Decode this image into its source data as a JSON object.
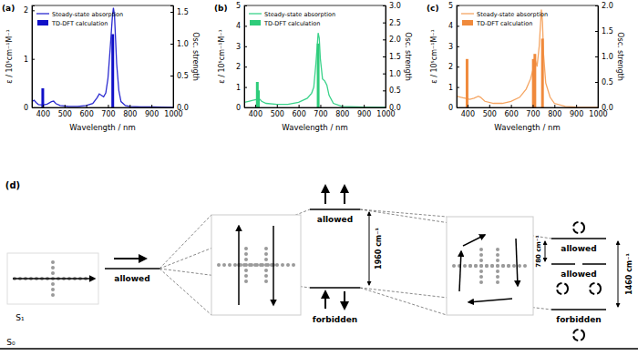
{
  "chart_data": [
    {
      "type": "line",
      "title": "(a)",
      "xlabel": "Wavelength / nm",
      "ylabel": "ε / 10⁵cm⁻¹M⁻¹",
      "y2label": "Osc. strength",
      "xlim": [
        350,
        1000
      ],
      "xticks": [
        400,
        500,
        600,
        700,
        800,
        900,
        1000
      ],
      "ylim": [
        0,
        2.1
      ],
      "yticks": [
        0,
        1,
        2
      ],
      "y2lim": [
        0,
        1.6
      ],
      "y2ticks": [
        {
          "value": 0,
          "label": "0.0"
        },
        0.5,
        {
          "value": 1,
          "label": "1.0"
        },
        1.5
      ],
      "legend": "upper left",
      "series": [
        {
          "name": "Steady-state absorption",
          "type": "line",
          "color": "#2b2bd0",
          "x": [
            350,
            360,
            370,
            380,
            400,
            420,
            440,
            450,
            460,
            480,
            520,
            560,
            600,
            630,
            650,
            660,
            670,
            680,
            690,
            700,
            710,
            720,
            725,
            730,
            740,
            750,
            760,
            780,
            800,
            850,
            900,
            1000
          ],
          "values": [
            0.12,
            0.15,
            0.1,
            0.06,
            0.05,
            0.07,
            0.12,
            0.13,
            0.08,
            0.04,
            0.02,
            0.02,
            0.04,
            0.08,
            0.2,
            0.28,
            0.25,
            0.22,
            0.3,
            0.6,
            1.2,
            1.85,
            2.05,
            1.9,
            0.9,
            0.35,
            0.12,
            0.04,
            0.02,
            0.01,
            0.01,
            0
          ]
        },
        {
          "name": "TD-DFT calculation",
          "type": "bar",
          "axis": "y2",
          "color": "#1010c8",
          "x": [
            400,
            722
          ],
          "values": [
            0.3,
            1.15
          ]
        }
      ]
    },
    {
      "type": "line",
      "title": "(b)",
      "xlabel": "Wavelength / nm",
      "ylabel": "ε / 10⁵cm⁻¹M⁻¹",
      "y2label": "Osc. strength",
      "xlim": [
        350,
        1000
      ],
      "xticks": [
        400,
        500,
        600,
        700,
        800,
        900,
        1000
      ],
      "ylim": [
        0,
        5
      ],
      "yticks": [
        0,
        1,
        2,
        3,
        4,
        5
      ],
      "y2lim": [
        0,
        3
      ],
      "y2ticks": [
        {
          "value": 0,
          "label": "0.0"
        },
        0.5,
        {
          "value": 1,
          "label": "1.0"
        },
        1.5,
        {
          "value": 2,
          "label": "2.0"
        },
        2.5,
        {
          "value": 3,
          "label": "3.0"
        }
      ],
      "legend": "upper left",
      "series": [
        {
          "name": "Steady-state absorption",
          "type": "line",
          "color": "#3ad28a",
          "x": [
            350,
            370,
            390,
            410,
            420,
            430,
            450,
            500,
            550,
            600,
            640,
            660,
            670,
            680,
            690,
            695,
            700,
            710,
            720,
            730,
            740,
            760,
            800,
            900,
            1000
          ],
          "values": [
            0.25,
            0.3,
            0.35,
            0.4,
            0.42,
            0.3,
            0.2,
            0.15,
            0.15,
            0.25,
            0.45,
            0.7,
            1.0,
            2.2,
            3.65,
            3.4,
            2.4,
            1.4,
            1.3,
            1.1,
            0.6,
            0.2,
            0.05,
            0.02,
            0
          ]
        },
        {
          "name": "TD-DFT calculation",
          "type": "bar",
          "axis": "y2",
          "color": "#2ecc7a",
          "x": [
            410,
            415,
            690
          ],
          "values": [
            0.75,
            0.5,
            1.88
          ]
        }
      ]
    },
    {
      "type": "line",
      "title": "(c)",
      "xlabel": "Wavelength / nm",
      "ylabel": "ε / 10⁵cm⁻¹M⁻¹",
      "y2label": "Osc. strength",
      "xlim": [
        350,
        1000
      ],
      "xticks": [
        400,
        500,
        600,
        700,
        800,
        900,
        1000
      ],
      "ylim": [
        0,
        5
      ],
      "yticks": [
        0,
        1,
        2,
        3,
        4,
        5
      ],
      "y2lim": [
        0,
        2
      ],
      "y2ticks": [
        {
          "value": 0,
          "label": "0.0"
        },
        0.5,
        {
          "value": 1,
          "label": "1.0"
        },
        1.5,
        {
          "value": 2,
          "label": "2.0"
        }
      ],
      "legend": "upper left",
      "series": [
        {
          "name": "Steady-state absorption",
          "type": "line",
          "color": "#f5a562",
          "x": [
            350,
            370,
            390,
            410,
            430,
            450,
            460,
            480,
            520,
            560,
            600,
            640,
            670,
            690,
            700,
            710,
            720,
            730,
            740,
            745,
            750,
            760,
            780,
            800,
            850,
            900,
            1000
          ],
          "values": [
            0.55,
            0.5,
            0.45,
            0.4,
            0.45,
            0.55,
            0.5,
            0.3,
            0.2,
            0.2,
            0.3,
            0.5,
            0.9,
            1.4,
            1.8,
            2.4,
            2.0,
            3.0,
            4.8,
            4.2,
            2.6,
            1.2,
            0.5,
            0.2,
            0.05,
            0.02,
            0
          ]
        },
        {
          "name": "TD-DFT calculation",
          "type": "bar",
          "axis": "y2",
          "color": "#f08a3c",
          "x": [
            398,
            703,
            710,
            745
          ],
          "values": [
            0.95,
            0.95,
            1.05,
            1.35
          ]
        }
      ]
    }
  ],
  "diagram": {
    "label": "(d)",
    "s1": "S₁",
    "s0": "S₀",
    "monomer": {
      "levels": [
        {
          "label": "allowed",
          "lines": 1
        }
      ]
    },
    "dimer": {
      "levels": [
        {
          "label": "allowed",
          "lines": 1
        },
        {
          "label": "forbidden",
          "lines": 1
        }
      ],
      "splitting": "1960 cm⁻¹"
    },
    "tetramer": {
      "levels": [
        {
          "label": "allowed",
          "lines": 1
        },
        {
          "label": "allowed",
          "lines": 2
        },
        {
          "label": "forbidden",
          "lines": 1
        }
      ],
      "splittings": [
        "780 cm⁻¹",
        "1460 cm⁻¹"
      ]
    }
  }
}
